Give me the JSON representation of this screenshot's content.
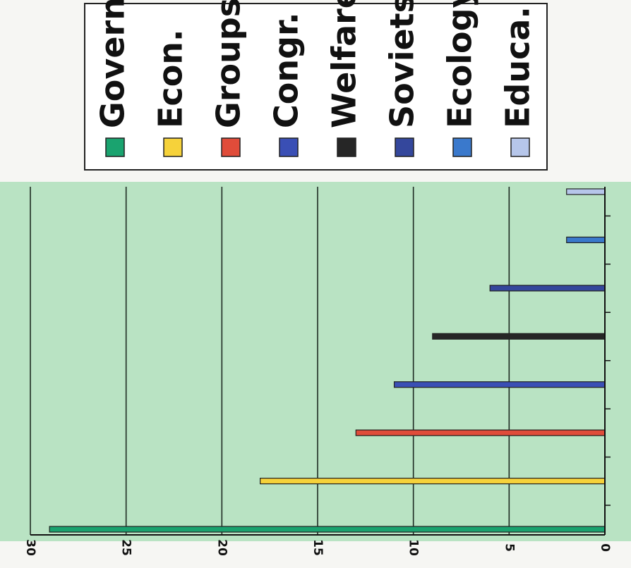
{
  "chart_data": {
    "type": "bar",
    "orientation": "horizontal",
    "categories": [
      "Govern",
      "Econ.",
      "Groups",
      "Congr.",
      "Welfare",
      "Soviets",
      "Ecology",
      "Educa."
    ],
    "values": [
      29,
      18,
      13,
      11,
      9,
      6,
      2,
      2
    ],
    "colors": [
      "#1aa36f",
      "#f6d23a",
      "#e04c3a",
      "#3a4fb5",
      "#262626",
      "#34479c",
      "#3a79cc",
      "#b6c6ea"
    ],
    "xlim": [
      0,
      30
    ],
    "x_ticks": [
      "0",
      "5",
      "10",
      "15",
      "20",
      "25",
      "30"
    ],
    "grid": true,
    "legend": {
      "position": "top",
      "entries": [
        "Govern",
        "Econ.",
        "Groups",
        "Congr.",
        "Welfare",
        "Soviets",
        "Ecology",
        "Educa."
      ]
    },
    "plot_background": "#b9e3c3",
    "rotated": "90-degrees-clockwise"
  }
}
